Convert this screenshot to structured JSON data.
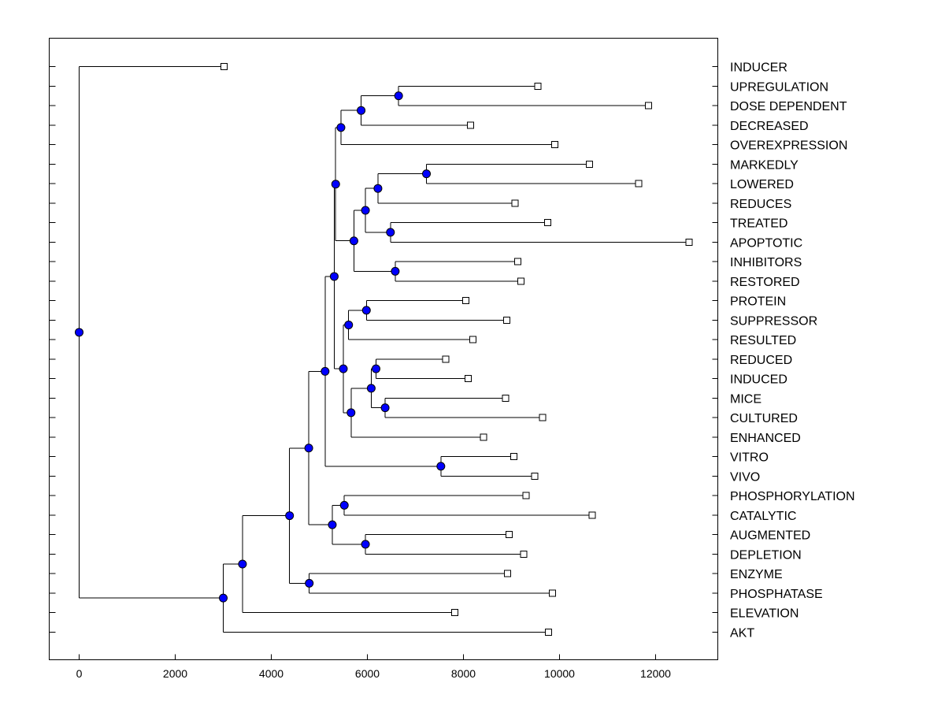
{
  "chart_data": {
    "type": "dendrogram",
    "title": "",
    "xlabel": "",
    "ylabel": "",
    "xlim": [
      -600,
      13400
    ],
    "xticks": [
      0,
      2000,
      4000,
      6000,
      8000,
      10000,
      12000
    ],
    "xtick_labels": [
      "0",
      "2000",
      "4000",
      "6000",
      "8000",
      "10000",
      "12000"
    ],
    "leaves": [
      {
        "label": "INDUCER",
        "x": 3020
      },
      {
        "label": "UPREGULATION",
        "x": 9550
      },
      {
        "label": "DOSE DEPENDENT",
        "x": 11850
      },
      {
        "label": "DECREASED",
        "x": 8150
      },
      {
        "label": "OVEREXPRESSION",
        "x": 9900
      },
      {
        "label": "MARKEDLY",
        "x": 10620
      },
      {
        "label": "LOWERED",
        "x": 11650
      },
      {
        "label": "REDUCES",
        "x": 9070
      },
      {
        "label": "TREATED",
        "x": 9750
      },
      {
        "label": "APOPTOTIC",
        "x": 12700
      },
      {
        "label": "INHIBITORS",
        "x": 9130
      },
      {
        "label": "RESTORED",
        "x": 9200
      },
      {
        "label": "PROTEIN",
        "x": 8050
      },
      {
        "label": "SUPPRESSOR",
        "x": 8900
      },
      {
        "label": "RESULTED",
        "x": 8200
      },
      {
        "label": "REDUCED",
        "x": 7630
      },
      {
        "label": "INDUCED",
        "x": 8100
      },
      {
        "label": "MICE",
        "x": 8880
      },
      {
        "label": "CULTURED",
        "x": 9650
      },
      {
        "label": "ENHANCED",
        "x": 8420
      },
      {
        "label": "VITRO",
        "x": 9050
      },
      {
        "label": "VIVO",
        "x": 9480
      },
      {
        "label": "PHOSPHORYLATION",
        "x": 9300
      },
      {
        "label": "CATALYTIC",
        "x": 10680
      },
      {
        "label": "AUGMENTED",
        "x": 8950
      },
      {
        "label": "DEPLETION",
        "x": 9250
      },
      {
        "label": "ENZYME",
        "x": 8920
      },
      {
        "label": "PHOSPHATASE",
        "x": 9850
      },
      {
        "label": "ELEVATION",
        "x": 7820
      },
      {
        "label": "AKT",
        "x": 9770
      }
    ],
    "merges": [
      {
        "id": "n1",
        "x": 6650,
        "children": [
          "UPREGULATION",
          "DOSE DEPENDENT"
        ]
      },
      {
        "id": "n2",
        "x": 5870,
        "children": [
          "n1",
          "DECREASED"
        ]
      },
      {
        "id": "n3",
        "x": 5450,
        "children": [
          "n2",
          "OVEREXPRESSION"
        ]
      },
      {
        "id": "n4",
        "x": 7230,
        "children": [
          "MARKEDLY",
          "LOWERED"
        ]
      },
      {
        "id": "n5",
        "x": 6220,
        "children": [
          "n4",
          "REDUCES"
        ]
      },
      {
        "id": "n6",
        "x": 6480,
        "children": [
          "TREATED",
          "APOPTOTIC"
        ]
      },
      {
        "id": "n7",
        "x": 5960,
        "children": [
          "n5",
          "n6"
        ]
      },
      {
        "id": "n8",
        "x": 6580,
        "children": [
          "INHIBITORS",
          "RESTORED"
        ]
      },
      {
        "id": "n9",
        "x": 5720,
        "children": [
          "n7",
          "n8"
        ]
      },
      {
        "id": "n10",
        "x": 5340,
        "children": [
          "n3",
          "n9"
        ]
      },
      {
        "id": "n11",
        "x": 5980,
        "children": [
          "PROTEIN",
          "SUPPRESSOR"
        ]
      },
      {
        "id": "n12",
        "x": 5610,
        "children": [
          "n11",
          "RESULTED"
        ]
      },
      {
        "id": "n13",
        "x": 6180,
        "children": [
          "REDUCED",
          "INDUCED"
        ]
      },
      {
        "id": "n14",
        "x": 6370,
        "children": [
          "MICE",
          "CULTURED"
        ]
      },
      {
        "id": "n15",
        "x": 6080,
        "children": [
          "n13",
          "n14"
        ]
      },
      {
        "id": "n16",
        "x": 5660,
        "children": [
          "n15",
          "ENHANCED"
        ]
      },
      {
        "id": "n17",
        "x": 5500,
        "children": [
          "n12",
          "n16"
        ]
      },
      {
        "id": "n18",
        "x": 5310,
        "children": [
          "n10",
          "n17"
        ]
      },
      {
        "id": "n19",
        "x": 7530,
        "children": [
          "VITRO",
          "VIVO"
        ]
      },
      {
        "id": "n20",
        "x": 5120,
        "children": [
          "n18",
          "n19"
        ]
      },
      {
        "id": "n21",
        "x": 5520,
        "children": [
          "PHOSPHORYLATION",
          "CATALYTIC"
        ]
      },
      {
        "id": "n22",
        "x": 5960,
        "children": [
          "AUGMENTED",
          "DEPLETION"
        ]
      },
      {
        "id": "n23",
        "x": 5270,
        "children": [
          "n21",
          "n22"
        ]
      },
      {
        "id": "n24",
        "x": 4780,
        "children": [
          "n20",
          "n23"
        ]
      },
      {
        "id": "n25",
        "x": 4790,
        "children": [
          "ENZYME",
          "PHOSPHATASE"
        ]
      },
      {
        "id": "n26",
        "x": 4380,
        "children": [
          "n24",
          "n25"
        ]
      },
      {
        "id": "n27",
        "x": 3400,
        "children": [
          "n26",
          "ELEVATION"
        ]
      },
      {
        "id": "n28",
        "x": 3000,
        "children": [
          "n27",
          "AKT"
        ]
      },
      {
        "id": "n29",
        "x": 0,
        "children": [
          "INDUCER",
          "n28"
        ]
      }
    ],
    "colors": {
      "node_fill": "#0000ff",
      "line": "#000000",
      "leaf_fill": "#ffffff"
    }
  }
}
